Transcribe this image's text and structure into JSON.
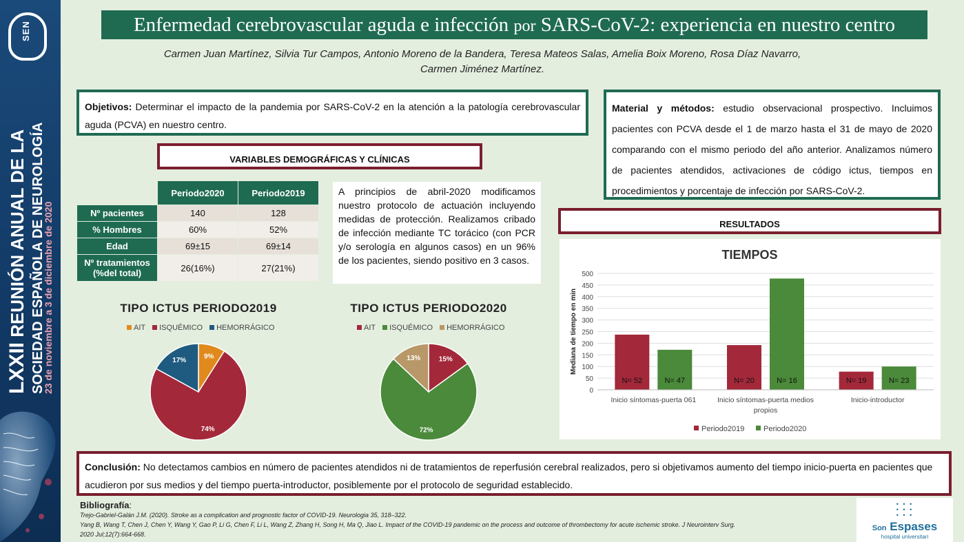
{
  "title": {
    "part1": "Enfermedad cerebrovascular aguda e infección",
    "por": "por",
    "part2": "SARS-CoV-2: experiencia en nuestro centro"
  },
  "authors": {
    "line1": "Carmen Juan Martínez, Silvia Tur Campos, Antonio Moreno de la Bandera, Teresa Mateos Salas, Amelia Boix Moreno, Rosa Díaz Navarro,",
    "line2": "Carmen Jiménez Martínez."
  },
  "sidebar": {
    "logo": "SEN",
    "line1_big": "LXXII",
    "line1_rest": " REUNIÓN ANUAL DE LA",
    "line2": "SOCIEDAD ESPAÑOLA DE NEUROLOGÍA",
    "line3": "23 de noviembre a 3 de diciembre de 2020"
  },
  "objetivos": {
    "label": "Objetivos:",
    "text": " Determinar el impacto de la pandemia por SARS-CoV-2 en la atención a la patología cerebrovascular aguda (PCVA) en nuestro centro."
  },
  "material": {
    "label": "Material y métodos:",
    "text": " estudio observacional prospectivo. Incluimos pacientes con PCVA desde el 1 de marzo hasta el 31 de mayo de 2020 comparando con el mismo periodo del año anterior. Analizamos número de pacientes atendidos, activaciones de código ictus, tiempos en procedimientos y porcentaje de infección por SARS-CoV-2."
  },
  "variables_header": "VARIABLES DEMOGRÁFICAS Y CLÍNICAS",
  "resultados_header": "RESULTADOS",
  "demo_table": {
    "columns": [
      "Periodo2020",
      "Periodo2019"
    ],
    "rows": [
      {
        "label": "Nº pacientes",
        "v2020": "140",
        "v2019": "128"
      },
      {
        "label": "% Hombres",
        "v2020": "60%",
        "v2019": "52%"
      },
      {
        "label": "Edad",
        "v2020": "69±15",
        "v2019": "69±14"
      },
      {
        "label": "Nº tratamientos (%del total)",
        "v2020": "26(16%)",
        "v2019": "27(21%)"
      }
    ]
  },
  "note": "A principios de abril-2020 modificamos nuestro protocolo de actuación incluyendo medidas de protección. Realizamos cribado de infección mediante TC torácico (con PCR y/o serología en algunos casos) en un 96% de los pacientes, siendo positivo en 3 casos.",
  "conclusion": {
    "label": "Conclusión:",
    "text": " No detectamos cambios en número de pacientes atendidos ni de tratamientos de reperfusión cerebral realizados, pero si objetivamos aumento del tiempo inicio-puerta en pacientes que acudieron por sus medios y del tiempo puerta-introductor, posiblemente por el protocolo de seguridad establecido."
  },
  "bibliography": {
    "heading": "Bibliografía",
    "colon": ":",
    "refs": [
      "Trejo-Gabriel-Galán J.M. (2020). Stroke as a complication and prognostic factor of COVID-19. Neurologia 35, 318–322.",
      "Yang B, Wang T, Chen J, Chen Y, Wang Y, Gao P, Li G, Chen F, Li L, Wang Z, Zhang H, Song H, Ma Q, Jiao L. Impact of the COVID-19 pandemic on the process and outcome of thrombectomy for acute ischemic stroke. J Neurointerv Surg.",
      "2020 Jul;12(7):664-668."
    ]
  },
  "hospital_logo": {
    "son": "Son",
    "name": "Espases",
    "sub": "hospital universitari"
  },
  "colors": {
    "green": "#1f6b52",
    "red": "#7a1e2e",
    "ait_2019": "#e08a1e",
    "isq": "#a3283a",
    "hem": "#1f5b80",
    "ait_2020": "#a3283a",
    "isq_2020": "#4a8a3a",
    "hem_2020": "#b89868"
  },
  "chart_data": [
    {
      "type": "pie",
      "title": "TIPO ICTUS PERIODO2019",
      "legend": [
        "AIT",
        "ISQUÉMICO",
        "HEMORRÁGICO"
      ],
      "values": [
        9,
        74,
        17
      ],
      "labels": [
        "9%",
        "74%",
        "17%"
      ],
      "colors": [
        "#e08a1e",
        "#a3283a",
        "#1f5b80"
      ]
    },
    {
      "type": "pie",
      "title": "TIPO ICTUS PERIODO2020",
      "legend": [
        "AIT",
        "ISQUÉMICO",
        "HEMORRÁGICO"
      ],
      "values": [
        15,
        72,
        13
      ],
      "labels": [
        "15%",
        "72%",
        "13%"
      ],
      "colors": [
        "#a3283a",
        "#4a8a3a",
        "#b89868"
      ]
    },
    {
      "type": "bar",
      "title": "TIEMPOS",
      "ylabel": "Mediana de tiempo en min",
      "ylim": [
        0,
        500
      ],
      "yticks": [
        0,
        50,
        100,
        150,
        200,
        250,
        300,
        350,
        400,
        450,
        500
      ],
      "categories": [
        "Inicio síntomas-puerta 061",
        "Inicio síntomas-puerta medios propios",
        "Inicio-introductor"
      ],
      "series": [
        {
          "name": "Periodo2019",
          "values": [
            237,
            192,
            78
          ],
          "n_labels": [
            "N= 52",
            "N= 20",
            "N= 19"
          ],
          "color": "#a3283a"
        },
        {
          "name": "Periodo2020",
          "values": [
            172,
            478,
            100
          ],
          "n_labels": [
            "N= 47",
            "N= 16",
            "N= 23"
          ],
          "color": "#4a8a3a"
        }
      ]
    }
  ]
}
